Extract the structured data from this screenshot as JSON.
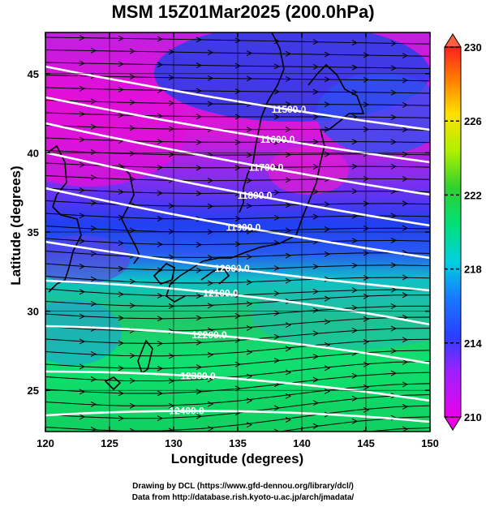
{
  "title": "MSM 15Z01Mar2025 (200.0hPa)",
  "xlabel": "Longitude (degrees)",
  "ylabel": "Latitude  (degrees)",
  "credit_line1": "Drawing by DCL (https://www.gfd-dennou.org/library/dcl/)",
  "credit_line2": "Data from http://database.rish.kyoto-u.ac.jp/arch/jmadata/",
  "map": {
    "lon_range": [
      120,
      150
    ],
    "lat_range": [
      22.4,
      47.6
    ],
    "x_ticks": [
      "120",
      "125",
      "130",
      "135",
      "140",
      "145",
      "150"
    ],
    "y_ticks": [
      "25",
      "30",
      "35",
      "40",
      "45"
    ],
    "field": "temperature shading, geopotential height contours, wind streamlines",
    "contour_labels": [
      "11500.0",
      "11600.0",
      "11700.0",
      "11800.0",
      "11900.0",
      "12000.0",
      "12100.0",
      "12200.0",
      "12300.0",
      "12400.0"
    ],
    "contour_color": "#ffffff",
    "streamline_color": "#000000"
  },
  "colorbar": {
    "min": 210,
    "max": 230,
    "tick_labels": [
      "210",
      "214",
      "218",
      "222",
      "226",
      "230"
    ],
    "colors": [
      "#e800e8",
      "#a020ff",
      "#2040ff",
      "#00c0ff",
      "#00e080",
      "#30d030",
      "#c0f000",
      "#ffe000",
      "#ff8000",
      "#ff2020"
    ]
  }
}
